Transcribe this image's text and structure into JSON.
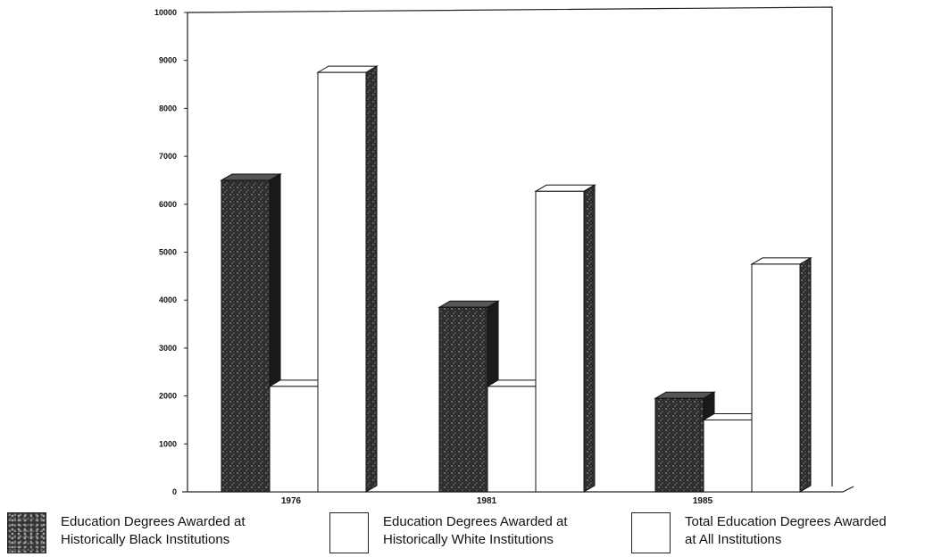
{
  "chart_data": {
    "type": "bar",
    "categories": [
      "1976",
      "1981",
      "1985"
    ],
    "series": [
      {
        "name": "Education Degrees Awarded at Historically Black Institutions",
        "values": [
          6500,
          3850,
          1950
        ]
      },
      {
        "name": "Education Degrees Awarded at Historically White Institutions",
        "values": [
          2200,
          2200,
          1500
        ]
      },
      {
        "name": "Total Education Degrees Awarded at All Institutions",
        "values": [
          8750,
          6270,
          4750
        ]
      }
    ],
    "ylim": [
      0,
      10000
    ],
    "yticks": [
      "0",
      "1000",
      "2000",
      "3000",
      "4000",
      "5000",
      "6000",
      "7000",
      "8000",
      "9000",
      "10000"
    ],
    "title": "",
    "xlabel": "",
    "ylabel": "",
    "grid": false,
    "legend_position": "bottom",
    "colors": {
      "dark": "#2e2e2e",
      "light": "#ffffff",
      "edge": "#111111"
    }
  },
  "legend": [
    {
      "line1": "Education Degrees Awarded at",
      "line2": "Historically Black Institutions",
      "style": "dark"
    },
    {
      "line1": "Education Degrees Awarded at",
      "line2": "Historically White Institutions",
      "style": "light"
    },
    {
      "line1": "Total Education Degrees Awarded",
      "line2": "at All Institutions",
      "style": "light"
    }
  ]
}
